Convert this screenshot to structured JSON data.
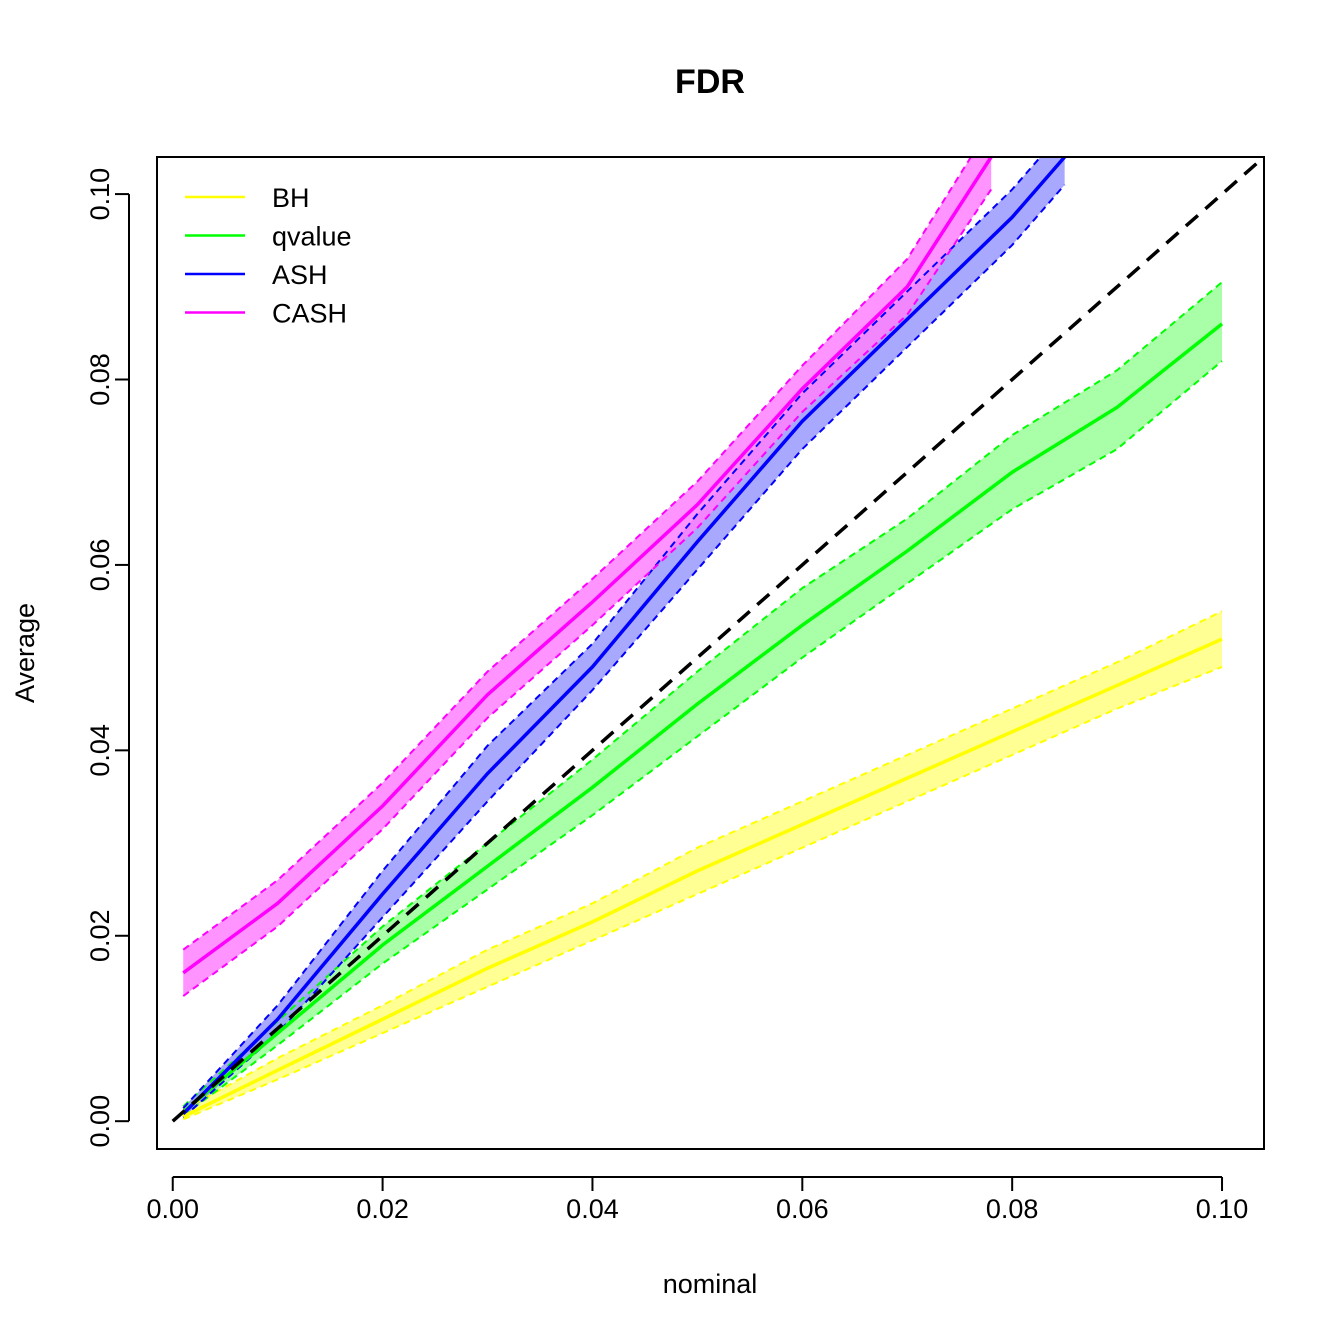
{
  "chart_data": {
    "type": "line",
    "title": "FDR",
    "xlabel": "nominal",
    "ylabel": "Average",
    "xlim": [
      -0.0015,
      0.104
    ],
    "ylim": [
      -0.003,
      0.104
    ],
    "xticks": [
      "0.00",
      "0.02",
      "0.04",
      "0.06",
      "0.08",
      "0.10"
    ],
    "yticks": [
      "0.00",
      "0.02",
      "0.04",
      "0.06",
      "0.08",
      "0.10"
    ],
    "legend_position": "top-left",
    "grid": false,
    "reference_line": {
      "x": [
        0,
        0.104
      ],
      "y": [
        0,
        0.104
      ],
      "style": "dashed",
      "color": "#000000"
    },
    "series": [
      {
        "name": "BH",
        "color": "#ffff00",
        "band_color": "#ffff80",
        "x": [
          0.001,
          0.01,
          0.02,
          0.03,
          0.04,
          0.05,
          0.06,
          0.07,
          0.08,
          0.09,
          0.1
        ],
        "y": [
          0.0005,
          0.0055,
          0.011,
          0.0165,
          0.0215,
          0.027,
          0.032,
          0.037,
          0.042,
          0.047,
          0.052
        ],
        "lower": [
          0.0002,
          0.0045,
          0.0095,
          0.0145,
          0.0195,
          0.0245,
          0.0295,
          0.0345,
          0.0395,
          0.0445,
          0.049
        ],
        "upper": [
          0.0012,
          0.0068,
          0.0125,
          0.0185,
          0.0235,
          0.0295,
          0.0345,
          0.0395,
          0.0445,
          0.0495,
          0.055
        ]
      },
      {
        "name": "qvalue",
        "color": "#00ff00",
        "band_color": "#99ff99",
        "x": [
          0.001,
          0.01,
          0.02,
          0.03,
          0.04,
          0.05,
          0.06,
          0.07,
          0.08,
          0.09,
          0.1
        ],
        "y": [
          0.001,
          0.0095,
          0.019,
          0.0275,
          0.036,
          0.045,
          0.0535,
          0.0615,
          0.07,
          0.077,
          0.086
        ],
        "lower": [
          0.0006,
          0.0082,
          0.017,
          0.025,
          0.033,
          0.0415,
          0.05,
          0.058,
          0.066,
          0.0725,
          0.082
        ],
        "upper": [
          0.0016,
          0.0108,
          0.021,
          0.03,
          0.039,
          0.0485,
          0.0575,
          0.065,
          0.074,
          0.081,
          0.0905
        ]
      },
      {
        "name": "ASH",
        "color": "#0000ff",
        "band_color": "#9999ff",
        "x": [
          0.001,
          0.01,
          0.02,
          0.03,
          0.04,
          0.05,
          0.06,
          0.07,
          0.08,
          0.085
        ],
        "y": [
          0.0008,
          0.011,
          0.0245,
          0.0375,
          0.049,
          0.0625,
          0.0755,
          0.0865,
          0.0975,
          0.104
        ],
        "lower": [
          0.0004,
          0.0095,
          0.022,
          0.0345,
          0.0465,
          0.0595,
          0.0725,
          0.0835,
          0.0945,
          0.101
        ],
        "upper": [
          0.0014,
          0.0125,
          0.027,
          0.0405,
          0.0515,
          0.0655,
          0.0785,
          0.0895,
          0.1005,
          0.107
        ]
      },
      {
        "name": "CASH",
        "color": "#ff00ff",
        "band_color": "#ff80ff",
        "x": [
          0.001,
          0.01,
          0.02,
          0.03,
          0.04,
          0.05,
          0.06,
          0.07,
          0.078
        ],
        "y": [
          0.016,
          0.0235,
          0.034,
          0.046,
          0.056,
          0.0665,
          0.079,
          0.09,
          0.104
        ],
        "lower": [
          0.0135,
          0.021,
          0.0315,
          0.0435,
          0.0535,
          0.064,
          0.0765,
          0.087,
          0.1005
        ],
        "upper": [
          0.0185,
          0.026,
          0.0365,
          0.0485,
          0.0585,
          0.069,
          0.0815,
          0.093,
          0.1075
        ]
      }
    ]
  }
}
